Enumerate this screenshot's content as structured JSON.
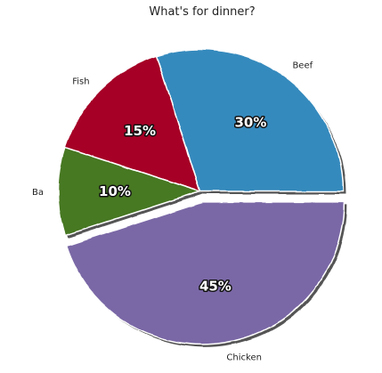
{
  "chart_data": {
    "type": "pie",
    "title": "What's for dinner?",
    "categories": [
      "Beef",
      "Fish",
      "Ba",
      "Chicken"
    ],
    "values": [
      30,
      15,
      10,
      45
    ],
    "value_labels": [
      "30%",
      "15%",
      "10%",
      "45%"
    ],
    "colors": [
      "#348ABD",
      "#A60628",
      "#467821",
      "#7A68A6"
    ],
    "exploded": [
      0,
      0,
      0,
      1
    ],
    "start_angle_deg": 0,
    "direction": "counterclockwise",
    "shadow": true,
    "legend": "none"
  }
}
